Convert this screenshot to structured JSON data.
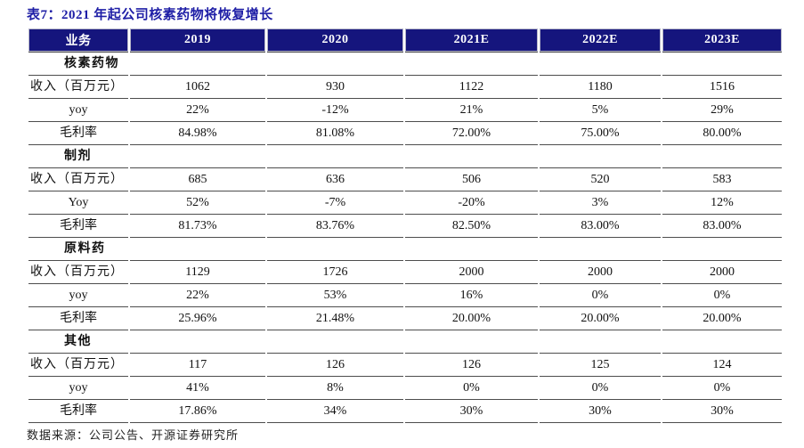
{
  "title": "表7：2021 年起公司核素药物将恢复增长",
  "source": "数据来源：公司公告、开源证券研究所",
  "colors": {
    "title_text": "#1e1ea6",
    "header_bg": "#15157d",
    "header_text": "#ffffff",
    "row_border": "#4d4d4d",
    "body_text": "#111111"
  },
  "table": {
    "columns": [
      "业务",
      "2019",
      "2020",
      "2021E",
      "2022E",
      "2023E"
    ],
    "sections": [
      {
        "name": "核素药物",
        "rows": [
          {
            "label": "收入（百万元）",
            "align": "left",
            "values": [
              "1062",
              "930",
              "1122",
              "1180",
              "1516"
            ]
          },
          {
            "label": "yoy",
            "align": "center",
            "values": [
              "22%",
              "-12%",
              "21%",
              "5%",
              "29%"
            ]
          },
          {
            "label": "毛利率",
            "align": "center",
            "values": [
              "84.98%",
              "81.08%",
              "72.00%",
              "75.00%",
              "80.00%"
            ]
          }
        ]
      },
      {
        "name": "制剂",
        "rows": [
          {
            "label": "收入（百万元）",
            "align": "left",
            "values": [
              "685",
              "636",
              "506",
              "520",
              "583"
            ]
          },
          {
            "label": "Yoy",
            "align": "center",
            "values": [
              "52%",
              "-7%",
              "-20%",
              "3%",
              "12%"
            ]
          },
          {
            "label": "毛利率",
            "align": "center",
            "values": [
              "81.73%",
              "83.76%",
              "82.50%",
              "83.00%",
              "83.00%"
            ]
          }
        ]
      },
      {
        "name": "原料药",
        "rows": [
          {
            "label": "收入（百万元）",
            "align": "left",
            "values": [
              "1129",
              "1726",
              "2000",
              "2000",
              "2000"
            ]
          },
          {
            "label": "yoy",
            "align": "center",
            "values": [
              "22%",
              "53%",
              "16%",
              "0%",
              "0%"
            ]
          },
          {
            "label": "毛利率",
            "align": "center",
            "values": [
              "25.96%",
              "21.48%",
              "20.00%",
              "20.00%",
              "20.00%"
            ]
          }
        ]
      },
      {
        "name": "其他",
        "rows": [
          {
            "label": "收入（百万元）",
            "align": "left",
            "values": [
              "117",
              "126",
              "126",
              "125",
              "124"
            ]
          },
          {
            "label": "yoy",
            "align": "center",
            "values": [
              "41%",
              "8%",
              "0%",
              "0%",
              "0%"
            ]
          },
          {
            "label": "毛利率",
            "align": "center",
            "values": [
              "17.86%",
              "34%",
              "30%",
              "30%",
              "30%"
            ]
          }
        ]
      }
    ]
  }
}
